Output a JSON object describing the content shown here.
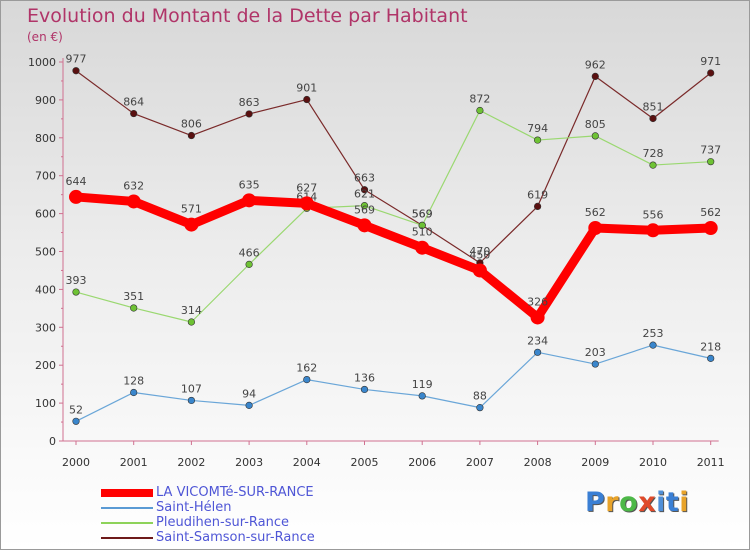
{
  "header": {
    "title": "Evolution du Montant de la Dette par Habitant",
    "unit": "(en €)"
  },
  "logo": {
    "text": "Proxiti",
    "colors": [
      "#3a7fd4",
      "#e8a32a",
      "#4db848",
      "#e04a2a",
      "#4f8fd8",
      "#3a7fd4",
      "#e8a32a"
    ]
  },
  "chart_data": {
    "type": "line",
    "title": "Evolution du Montant de la Dette par Habitant",
    "ylabel": "(en €)",
    "xlabel": "",
    "x": [
      "2000",
      "2001",
      "2002",
      "2003",
      "2004",
      "2005",
      "2006",
      "2007",
      "2008",
      "2009",
      "2010",
      "2011"
    ],
    "ylim": [
      0,
      1000
    ],
    "yticks": [
      0,
      100,
      200,
      300,
      400,
      500,
      600,
      700,
      800,
      900,
      1000
    ],
    "grid": false,
    "legend_position": "bottom-left",
    "series": [
      {
        "name": "Saint-Samson-sur-Rance",
        "color": "#6e1a1a",
        "line_color": "#7a2a2a",
        "marker_color": "#5a1010",
        "thick": false,
        "values": [
          977,
          864,
          806,
          863,
          901,
          663,
          569,
          470,
          619,
          962,
          851,
          971
        ]
      },
      {
        "name": "Pleudihen-sur-Rance",
        "color": "#8ed35a",
        "line_color": "#9ad870",
        "marker_color": "#6ec234",
        "thick": false,
        "values": [
          393,
          351,
          314,
          466,
          614,
          621,
          569,
          872,
          794,
          805,
          728,
          737
        ]
      },
      {
        "name": "Saint-Hélen",
        "color": "#5a9ad4",
        "line_color": "#6aa6d8",
        "marker_color": "#3a86cc",
        "thick": false,
        "values": [
          52,
          128,
          107,
          94,
          162,
          136,
          119,
          88,
          234,
          203,
          253,
          218
        ]
      },
      {
        "name": "LA VICOMTé-SUR-RANCE",
        "color": "#ff0000",
        "line_color": "#ff0000",
        "marker_color": "#ff0000",
        "thick": true,
        "values": [
          644,
          632,
          571,
          635,
          627,
          569,
          510,
          450,
          326,
          562,
          556,
          562
        ]
      }
    ],
    "legend_order": [
      "LA VICOMTé-SUR-RANCE",
      "Saint-Hélen",
      "Pleudihen-sur-Rance",
      "Saint-Samson-sur-Rance"
    ]
  }
}
